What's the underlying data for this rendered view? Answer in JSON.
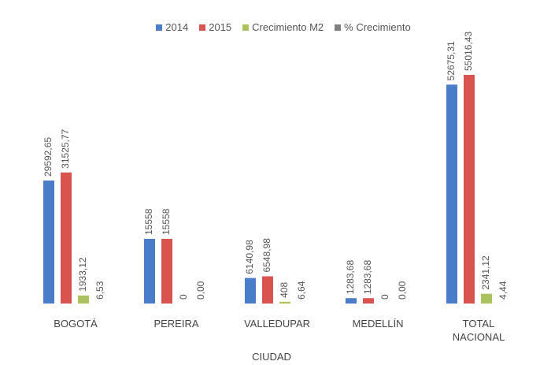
{
  "chart_data": {
    "type": "bar",
    "x_label": "CIUDAD",
    "categories": [
      "BOGOTÁ",
      "PEREIRA",
      "VALLEDUPAR",
      "MEDELLÍN",
      "TOTAL NACIONAL"
    ],
    "series": [
      {
        "name": "2014",
        "color": "#4a7cc9",
        "values": [
          29592.65,
          15558,
          6140.98,
          1283.68,
          52675.31
        ],
        "value_labels": [
          "29592,65",
          "15558",
          "6140,98",
          "1283,68",
          "52675,31"
        ]
      },
      {
        "name": "2015",
        "color": "#d9534f",
        "values": [
          31525.77,
          15558,
          6548.98,
          1283.68,
          55016.43
        ],
        "value_labels": [
          "31525,77",
          "15558",
          "6548,98",
          "1283,68",
          "55016,43"
        ]
      },
      {
        "name": "Crecimiento M2",
        "color": "#a9c25e",
        "values": [
          1933.12,
          0,
          408,
          0,
          2341.12
        ],
        "value_labels": [
          "1933,12",
          "0",
          "408",
          "0",
          "2341,12"
        ]
      },
      {
        "name": "% Crecimiento",
        "color": "#7f7f7f",
        "values": [
          6.53,
          0.0,
          6.64,
          0.0,
          4.44
        ],
        "value_labels": [
          "6,53",
          "0,00",
          "6,64",
          "0,00",
          "4,44"
        ]
      }
    ]
  }
}
